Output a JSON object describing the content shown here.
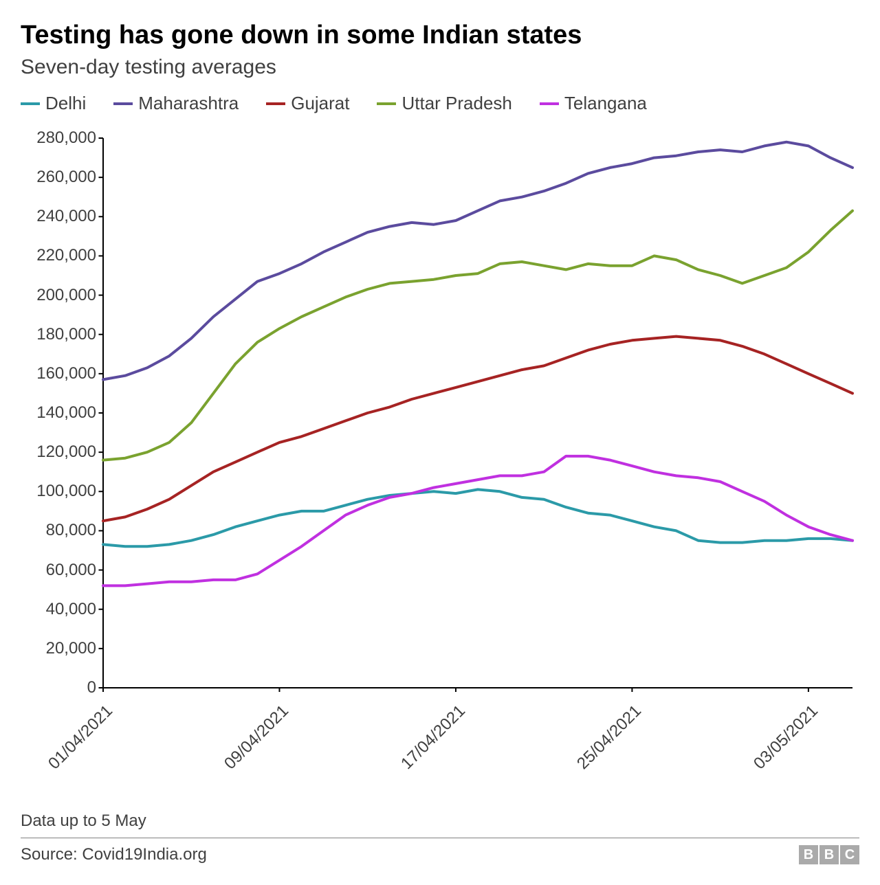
{
  "title": "Testing has gone down in some Indian states",
  "subtitle": "Seven-day testing averages",
  "footer_note": "Data up to 5 May",
  "source": "Source: Covid19India.org",
  "logo": {
    "letters": [
      "B",
      "B",
      "C"
    ],
    "box_color": "#aaaaaa",
    "text_color": "#ffffff"
  },
  "chart": {
    "type": "line",
    "background_color": "#ffffff",
    "axis_color": "#000000",
    "axis_stroke_width": 2,
    "text_color": "#404040",
    "title_fontsize": 38,
    "subtitle_fontsize": 30,
    "label_fontsize": 24,
    "legend_fontsize": 26,
    "line_width": 4,
    "ylim": [
      0,
      280000
    ],
    "ytick_step": 20000,
    "y_ticks": [
      0,
      20000,
      40000,
      60000,
      80000,
      100000,
      120000,
      140000,
      160000,
      180000,
      200000,
      220000,
      240000,
      260000,
      280000
    ],
    "y_tick_labels": [
      "0",
      "20,000",
      "40,000",
      "60,000",
      "80,000",
      "100,000",
      "120,000",
      "140,000",
      "160,000",
      "180,000",
      "200,000",
      "220,000",
      "240,000",
      "260,000",
      "280,000"
    ],
    "x_count": 35,
    "x_tick_indices": [
      0,
      8,
      16,
      24,
      32
    ],
    "x_tick_labels": [
      "01/04/2021",
      "09/04/2021",
      "17/04/2021",
      "25/04/2021",
      "03/05/2021"
    ],
    "x_label_rotation": -45,
    "series": [
      {
        "name": "Delhi",
        "color": "#2b9aa8",
        "values": [
          73000,
          72000,
          72000,
          73000,
          75000,
          78000,
          82000,
          85000,
          88000,
          90000,
          90000,
          93000,
          96000,
          98000,
          99000,
          100000,
          99000,
          101000,
          100000,
          97000,
          96000,
          92000,
          89000,
          88000,
          85000,
          82000,
          80000,
          75000,
          74000,
          74000,
          75000,
          75000,
          76000,
          76000,
          75000
        ]
      },
      {
        "name": "Maharashtra",
        "color": "#5b4b9e",
        "values": [
          157000,
          159000,
          163000,
          169000,
          178000,
          189000,
          198000,
          207000,
          211000,
          216000,
          222000,
          227000,
          232000,
          235000,
          237000,
          236000,
          238000,
          243000,
          248000,
          250000,
          253000,
          257000,
          262000,
          265000,
          267000,
          270000,
          271000,
          273000,
          274000,
          273000,
          276000,
          278000,
          276000,
          270000,
          265000
        ]
      },
      {
        "name": "Gujarat",
        "color": "#a62323",
        "values": [
          85000,
          87000,
          91000,
          96000,
          103000,
          110000,
          115000,
          120000,
          125000,
          128000,
          132000,
          136000,
          140000,
          143000,
          147000,
          150000,
          153000,
          156000,
          159000,
          162000,
          164000,
          168000,
          172000,
          175000,
          177000,
          178000,
          179000,
          178000,
          177000,
          174000,
          170000,
          165000,
          160000,
          155000,
          150000
        ]
      },
      {
        "name": "Uttar Pradesh",
        "color": "#7aa22f",
        "values": [
          116000,
          117000,
          120000,
          125000,
          135000,
          150000,
          165000,
          176000,
          183000,
          189000,
          194000,
          199000,
          203000,
          206000,
          207000,
          208000,
          210000,
          211000,
          216000,
          217000,
          215000,
          213000,
          216000,
          215000,
          215000,
          220000,
          218000,
          213000,
          210000,
          206000,
          210000,
          214000,
          222000,
          233000,
          243000
        ]
      },
      {
        "name": "Telangana",
        "color": "#c030e0",
        "values": [
          52000,
          52000,
          53000,
          54000,
          54000,
          55000,
          55000,
          58000,
          65000,
          72000,
          80000,
          88000,
          93000,
          97000,
          99000,
          102000,
          104000,
          106000,
          108000,
          108000,
          110000,
          118000,
          118000,
          116000,
          113000,
          110000,
          108000,
          107000,
          105000,
          100000,
          95000,
          88000,
          82000,
          78000,
          75000
        ]
      }
    ]
  }
}
